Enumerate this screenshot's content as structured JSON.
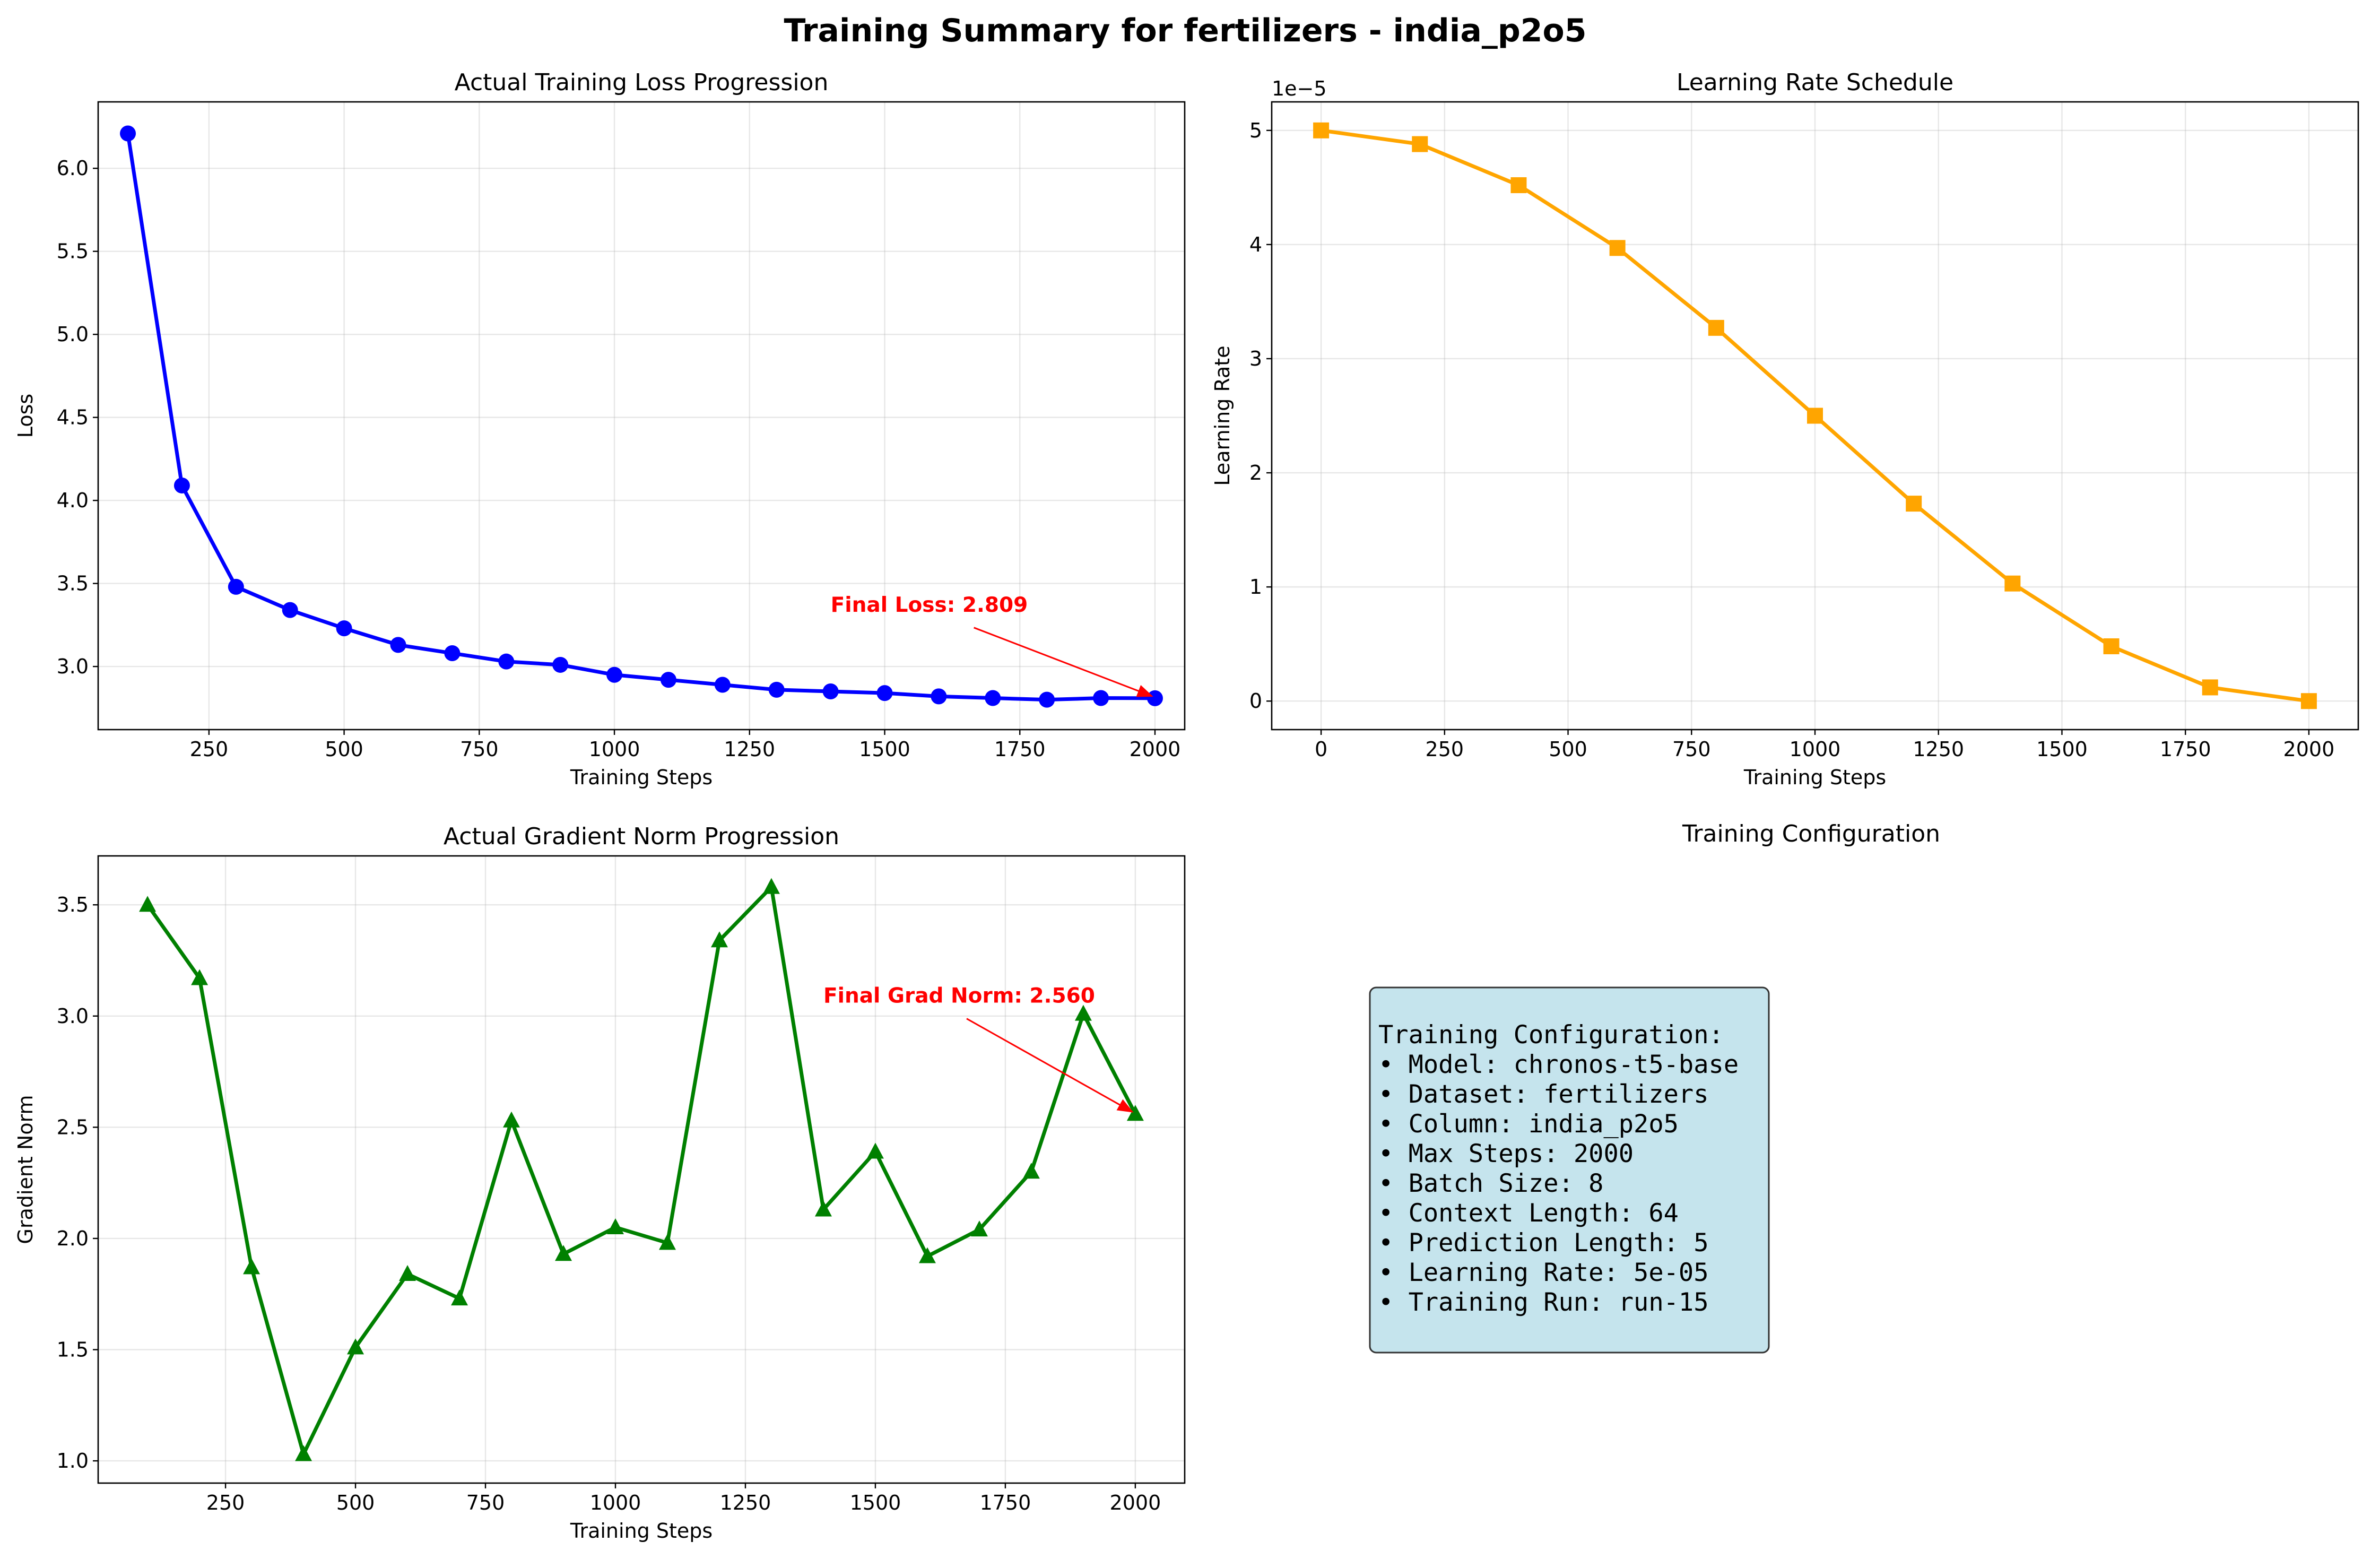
{
  "figure_title": "Training Summary for fertilizers - india_p2o5",
  "colors": {
    "loss": "#0000ff",
    "lr": "#ffa500",
    "grad": "#008000",
    "annotation": "#ff0000",
    "config_box": "#add8e6"
  },
  "chart_data": [
    {
      "id": "loss",
      "type": "line",
      "marker": "circle",
      "title": "Actual Training Loss Progression",
      "xlabel": "Training Steps",
      "ylabel": "Loss",
      "xlim": [
        45,
        2055
      ],
      "ylim": [
        2.62,
        6.4
      ],
      "xticks": [
        250,
        500,
        750,
        1000,
        1250,
        1500,
        1750,
        2000
      ],
      "xtick_labels": [
        "250",
        "500",
        "750",
        "1000",
        "1250",
        "1500",
        "1750",
        "2000"
      ],
      "yticks": [
        3.0,
        3.5,
        4.0,
        4.5,
        5.0,
        5.5,
        6.0
      ],
      "ytick_labels": [
        "3.0",
        "3.5",
        "4.0",
        "4.5",
        "5.0",
        "5.5",
        "6.0"
      ],
      "grid": true,
      "x": [
        100,
        200,
        300,
        400,
        500,
        600,
        700,
        800,
        900,
        1000,
        1100,
        1200,
        1300,
        1400,
        1500,
        1600,
        1700,
        1800,
        1900,
        2000
      ],
      "y": [
        6.21,
        4.09,
        3.48,
        3.34,
        3.23,
        3.13,
        3.08,
        3.03,
        3.01,
        2.95,
        2.92,
        2.89,
        2.86,
        2.85,
        2.84,
        2.82,
        2.81,
        2.8,
        2.81,
        2.809
      ],
      "annotation": {
        "text": "Final Loss: 2.809",
        "x": 2000,
        "y": 2.809,
        "text_x": 1400,
        "text_y": 3.33
      }
    },
    {
      "id": "lr",
      "type": "line",
      "marker": "square",
      "title": "Learning Rate Schedule",
      "xlabel": "Training Steps",
      "ylabel": "Learning Rate",
      "offset_label": "1e−5",
      "xlim": [
        -100,
        2100
      ],
      "ylim": [
        -0.25,
        5.25
      ],
      "xticks": [
        0,
        250,
        500,
        750,
        1000,
        1250,
        1500,
        1750,
        2000
      ],
      "xtick_labels": [
        "0",
        "250",
        "500",
        "750",
        "1000",
        "1250",
        "1500",
        "1750",
        "2000"
      ],
      "yticks": [
        0,
        1,
        2,
        3,
        4,
        5
      ],
      "ytick_labels": [
        "0",
        "1",
        "2",
        "3",
        "4",
        "5"
      ],
      "grid": true,
      "x": [
        0,
        200,
        400,
        600,
        800,
        1000,
        1200,
        1400,
        1600,
        1800,
        2000
      ],
      "y": [
        5.0,
        4.88,
        4.52,
        3.97,
        3.27,
        2.5,
        1.73,
        1.03,
        0.48,
        0.12,
        0.0
      ]
    },
    {
      "id": "grad",
      "type": "line",
      "marker": "triangle",
      "title": "Actual Gradient Norm Progression",
      "xlabel": "Training Steps",
      "ylabel": "Gradient Norm",
      "xlim": [
        5,
        2095
      ],
      "ylim": [
        0.9,
        3.72
      ],
      "xticks": [
        250,
        500,
        750,
        1000,
        1250,
        1500,
        1750,
        2000
      ],
      "xtick_labels": [
        "250",
        "500",
        "750",
        "1000",
        "1250",
        "1500",
        "1750",
        "2000"
      ],
      "yticks": [
        1.0,
        1.5,
        2.0,
        2.5,
        3.0,
        3.5
      ],
      "ytick_labels": [
        "1.0",
        "1.5",
        "2.0",
        "2.5",
        "3.0",
        "3.5"
      ],
      "grid": true,
      "x": [
        100,
        200,
        300,
        400,
        500,
        600,
        700,
        800,
        900,
        1000,
        1100,
        1200,
        1300,
        1400,
        1500,
        1600,
        1700,
        1800,
        1900,
        2000
      ],
      "y": [
        3.5,
        3.17,
        1.87,
        1.03,
        1.51,
        1.84,
        1.73,
        2.53,
        1.93,
        2.05,
        1.98,
        3.34,
        3.58,
        2.13,
        2.39,
        1.92,
        2.04,
        2.3,
        3.01,
        2.56
      ],
      "annotation": {
        "text": "Final Grad Norm: 2.560",
        "x": 2000,
        "y": 2.56,
        "text_x": 1400,
        "text_y": 3.06
      }
    }
  ],
  "config_panel": {
    "title": "Training Configuration",
    "lines": [
      "Training Configuration:",
      "• Model: chronos-t5-base",
      "• Dataset: fertilizers",
      "• Column: india_p2o5",
      "• Max Steps: 2000",
      "• Batch Size: 8",
      "• Context Length: 64",
      "• Prediction Length: 5",
      "• Learning Rate: 5e-05",
      "• Training Run: run-15"
    ]
  }
}
